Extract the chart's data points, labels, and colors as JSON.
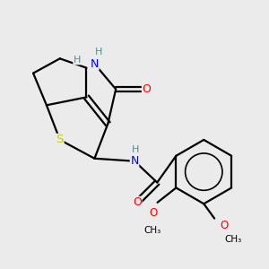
{
  "background_color": "#ebebeb",
  "atom_colors": {
    "C": "#000000",
    "H": "#4a9090",
    "N": "#0000ff",
    "O": "#ff0000",
    "S": "#cccc00"
  },
  "bond_color": "#000000",
  "bond_width": 1.6,
  "figsize": [
    3.0,
    3.0
  ],
  "dpi": 100
}
